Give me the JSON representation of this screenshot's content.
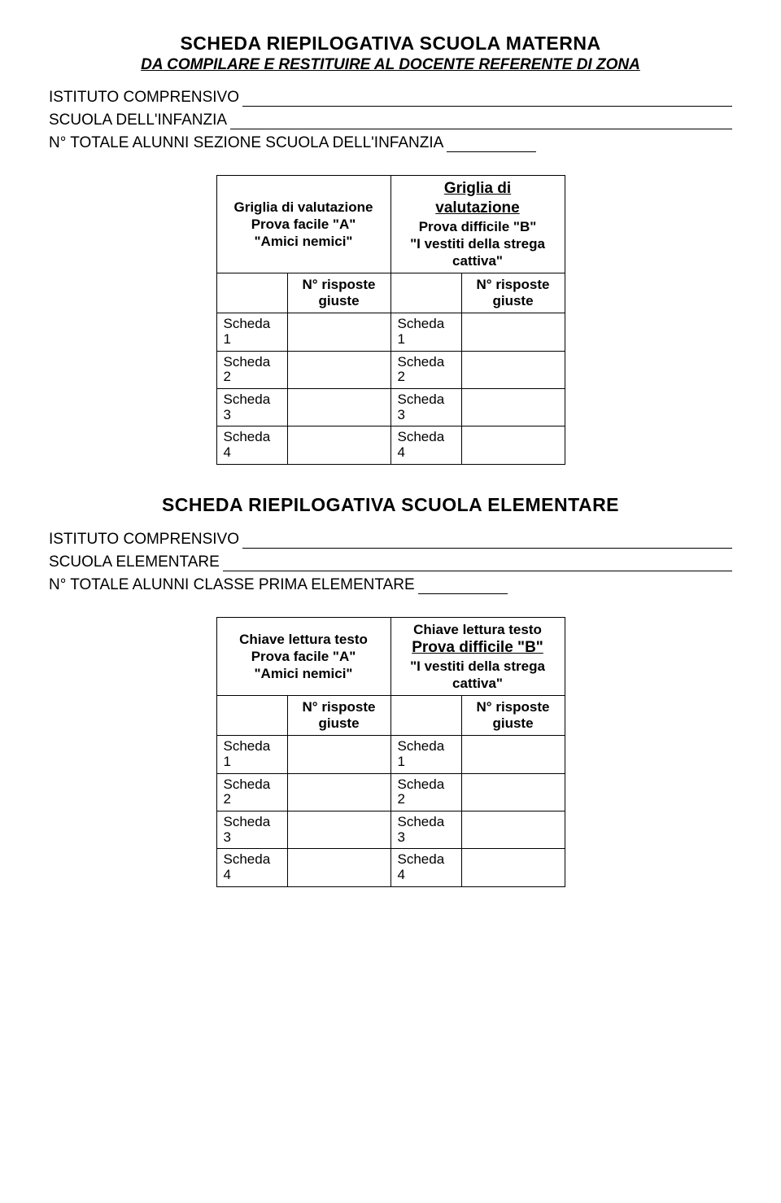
{
  "section1": {
    "title": "SCHEDA RIEPILOGATIVA SCUOLA MATERNA",
    "subtitle": "DA COMPILARE E RESTITUIRE AL DOCENTE REFERENTE DI ZONA",
    "field1": "ISTITUTO COMPRENSIVO",
    "field2": "SCUOLA DELL'INFANZIA",
    "field3": "N° TOTALE ALUNNI SEZIONE SCUOLA DELL'INFANZIA",
    "table": {
      "left_header_line1": "Griglia di valutazione",
      "left_header_line2": "Prova facile \"A\"",
      "left_header_line3": "\"Amici nemici\"",
      "right_header_line1": "Griglia di",
      "right_header_line2": "valutazione",
      "right_header_line3": "Prova difficile \"B\"",
      "right_header_line4": "\"I vestiti della strega cattiva\"",
      "sub_left": "N° risposte giuste",
      "sub_right": "N° risposte giuste",
      "rows": [
        {
          "l": "Scheda 1",
          "r": "Scheda 1"
        },
        {
          "l": "Scheda 2",
          "r": "Scheda 2"
        },
        {
          "l": "Scheda 3",
          "r": "Scheda 3"
        },
        {
          "l": "Scheda 4",
          "r": "Scheda 4"
        }
      ]
    }
  },
  "section2": {
    "title": "SCHEDA RIEPILOGATIVA SCUOLA ELEMENTARE",
    "field1": "ISTITUTO COMPRENSIVO",
    "field2": "SCUOLA ELEMENTARE",
    "field3": "N° TOTALE ALUNNI CLASSE PRIMA ELEMENTARE",
    "table": {
      "left_header_line1": "Chiave lettura testo",
      "left_header_line2": "Prova facile \"A\"",
      "left_header_line3": "\"Amici nemici\"",
      "right_header_line1": "Chiave lettura testo",
      "right_header_line3": "Prova difficile \"B\"",
      "right_header_line4": "\"I vestiti della strega cattiva\"",
      "sub_left": "N° risposte giuste",
      "sub_right": "N° risposte giuste",
      "rows": [
        {
          "l": "Scheda 1",
          "r": "Scheda 1"
        },
        {
          "l": "Scheda 2",
          "r": "Scheda 2"
        },
        {
          "l": "Scheda 3",
          "r": "Scheda 3"
        },
        {
          "l": "Scheda 4",
          "r": "Scheda 4"
        }
      ]
    }
  },
  "styling": {
    "font_family": "Arial",
    "title_fontsize": 23,
    "body_fontsize": 19,
    "table_fontsize": 17,
    "border_color": "#000000",
    "background_color": "#ffffff",
    "text_color": "#000000"
  }
}
